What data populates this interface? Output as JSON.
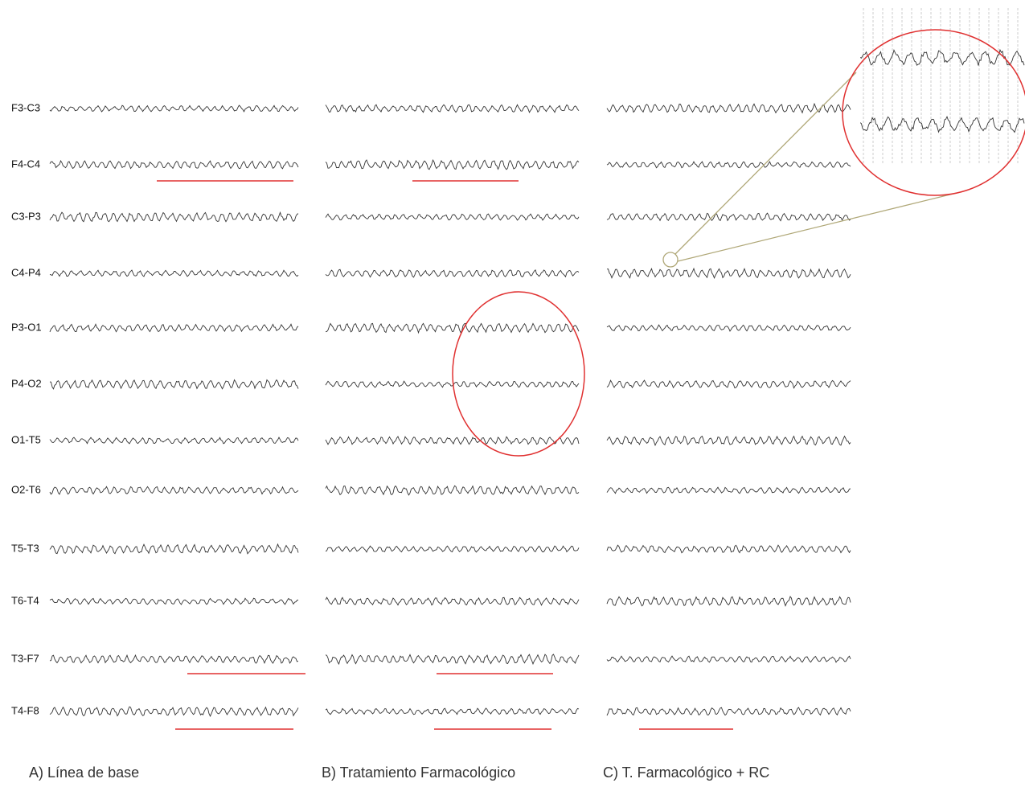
{
  "channels": [
    "F3-C3",
    "F4-C4",
    "C3-P3",
    "C4-P4",
    "P3-O1",
    "P4-O2",
    "O1-T5",
    "O2-T6",
    "T5-T3",
    "T6-T4",
    "T3-F7",
    "T4-F8"
  ],
  "panels": [
    {
      "caption": "A) Línea de base"
    },
    {
      "caption": "B) Tratamiento Farmacológico"
    },
    {
      "caption": "C) T. Farmacológico + RC"
    }
  ]
}
